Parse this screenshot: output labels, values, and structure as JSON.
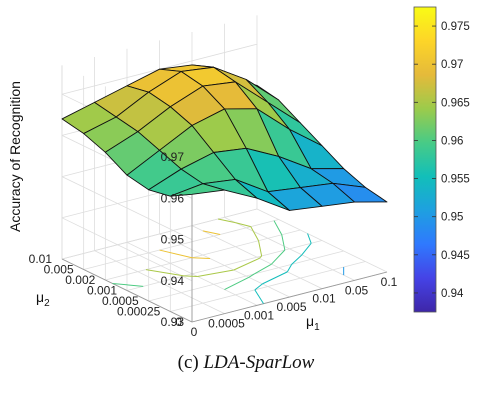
{
  "caption": {
    "prefix": "(c) ",
    "title": "LDA-SparLow"
  },
  "chart_data": {
    "type": "surface",
    "zlabel": "Accuracy of Recognition",
    "xlabel_symbol": "μ",
    "xlabel_subscript": "1",
    "ylabel_symbol": "μ",
    "ylabel_subscript": "2",
    "x_ticks": [
      "0",
      "0.0005",
      "0.001",
      "0.005",
      "0.01",
      "0.05",
      "0.1"
    ],
    "y_ticks": [
      "0.01",
      "0.005",
      "0.002",
      "0.001",
      "0.0005",
      "0.00025",
      "0"
    ],
    "z_ticks": [
      "0.93",
      "0.94",
      "0.95",
      "0.96",
      "0.97"
    ],
    "zlim": [
      0.93,
      0.975
    ],
    "colorbar": {
      "ticks": [
        "0.94",
        "0.945",
        "0.95",
        "0.955",
        "0.96",
        "0.965",
        "0.97",
        "0.975"
      ],
      "range": [
        0.9375,
        0.9775
      ],
      "colormap": [
        "#3e26a8",
        "#4543e6",
        "#2f79fe",
        "#1ea0e0",
        "#12bfb9",
        "#48cb86",
        "#9ccb4b",
        "#e5ba3a",
        "#fdd528",
        "#f9fb15"
      ]
    },
    "grid": true,
    "surface_z": [
      [
        0.964,
        0.966,
        0.968,
        0.97,
        0.969,
        0.964,
        0.96
      ],
      [
        0.963,
        0.965,
        0.969,
        0.972,
        0.971,
        0.966,
        0.959
      ],
      [
        0.961,
        0.964,
        0.968,
        0.971,
        0.97,
        0.963,
        0.956
      ],
      [
        0.958,
        0.962,
        0.966,
        0.968,
        0.966,
        0.959,
        0.953
      ],
      [
        0.957,
        0.96,
        0.962,
        0.961,
        0.957,
        0.952,
        0.95
      ],
      [
        0.958,
        0.959,
        0.958,
        0.953,
        0.952,
        0.951,
        0.948
      ],
      [
        0.961,
        0.96,
        0.956,
        0.951,
        0.95,
        0.949,
        0.947
      ]
    ],
    "contour_levels": [
      0.945,
      0.95,
      0.955,
      0.96,
      0.965,
      0.97
    ]
  }
}
